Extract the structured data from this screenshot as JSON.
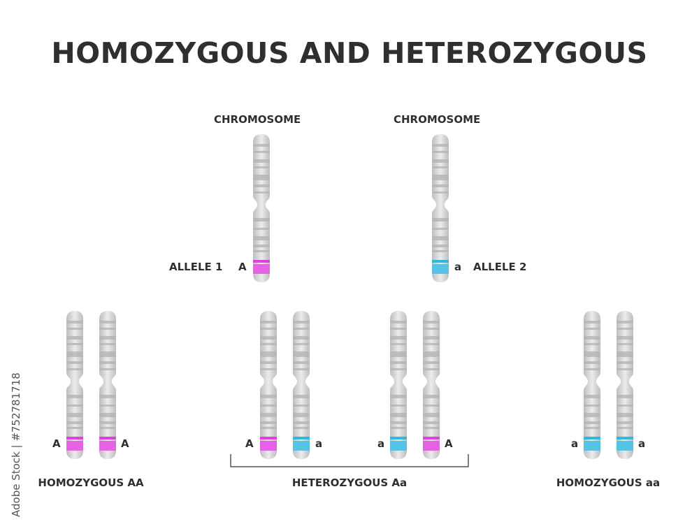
{
  "title": "HOMOZYGOUS AND HETEROZYGOUS",
  "top": {
    "left": {
      "label": "CHROMOSOME",
      "allele_name": "ALLELE 1",
      "letter": "A"
    },
    "right": {
      "label": "CHROMOSOME",
      "allele_name": "ALLELE 2",
      "letter": "a"
    }
  },
  "groups": {
    "homozygous_AA": {
      "caption": "HOMOZYGOUS AA",
      "letters": [
        "A",
        "A"
      ]
    },
    "heterozygous_Aa": {
      "caption": "HETEROZYGOUS Aa",
      "pair1": [
        "A",
        "a"
      ],
      "pair2": [
        "a",
        "A"
      ]
    },
    "homozygous_aa": {
      "caption": "HOMOZYGOUS aa",
      "letters": [
        "a",
        "a"
      ]
    }
  },
  "watermark": "Adobe Stock | #752781718",
  "colors": {
    "dominant": "#e040dc",
    "recessive": "#2fb8e0",
    "chromosome": "#d0d0d0",
    "band": "#b4b4b4",
    "text": "#2f2f2f"
  }
}
